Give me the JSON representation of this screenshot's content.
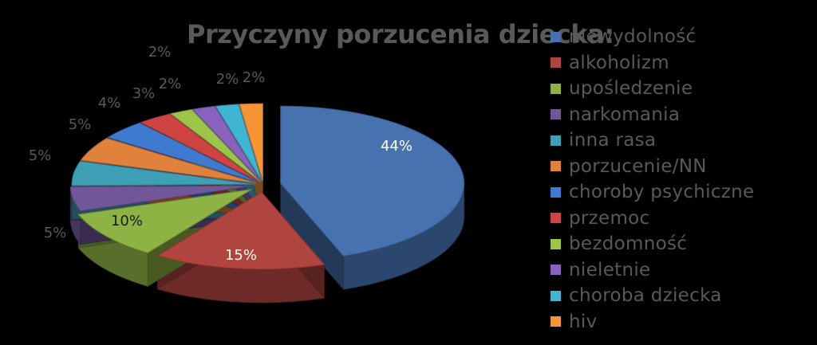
{
  "chart_data": {
    "type": "pie",
    "title": "Przyczyny porzucenia dziecka:",
    "slices": [
      {
        "label": "niewydolność",
        "value": 44,
        "value_label": "44%",
        "color": "#4672b0"
      },
      {
        "label": "alkoholizm",
        "value": 15,
        "value_label": "15%",
        "color": "#b0443f"
      },
      {
        "label": "upośledzenie",
        "value": 10,
        "value_label": "10%",
        "color": "#8db344"
      },
      {
        "label": "narkomania",
        "value": 5,
        "value_label": "5%",
        "color": "#71579a"
      },
      {
        "label": "inna rasa",
        "value": 5,
        "value_label": "5%",
        "color": "#3e9fb6"
      },
      {
        "label": "porzucenie/NN",
        "value": 5,
        "value_label": "5%",
        "color": "#e0823b"
      },
      {
        "label": "choroby psychiczne",
        "value": 4,
        "value_label": "4%",
        "color": "#3e7bd0"
      },
      {
        "label": "przemoc",
        "value": 3,
        "value_label": "3%",
        "color": "#cf4443"
      },
      {
        "label": "bezdomność",
        "value": 2,
        "value_label": "2%",
        "color": "#9bc648"
      },
      {
        "label": "nieletnie",
        "value": 2,
        "value_label": "2%",
        "color": "#8a62be"
      },
      {
        "label": "choroba dziecka",
        "value": 2,
        "value_label": "2%",
        "color": "#3fb5d4"
      },
      {
        "label": "hiv",
        "value": 2,
        "value_label": "2%",
        "color": "#f79536"
      }
    ],
    "legend_position": "right",
    "chart_style": "3d-exploded-pie"
  }
}
